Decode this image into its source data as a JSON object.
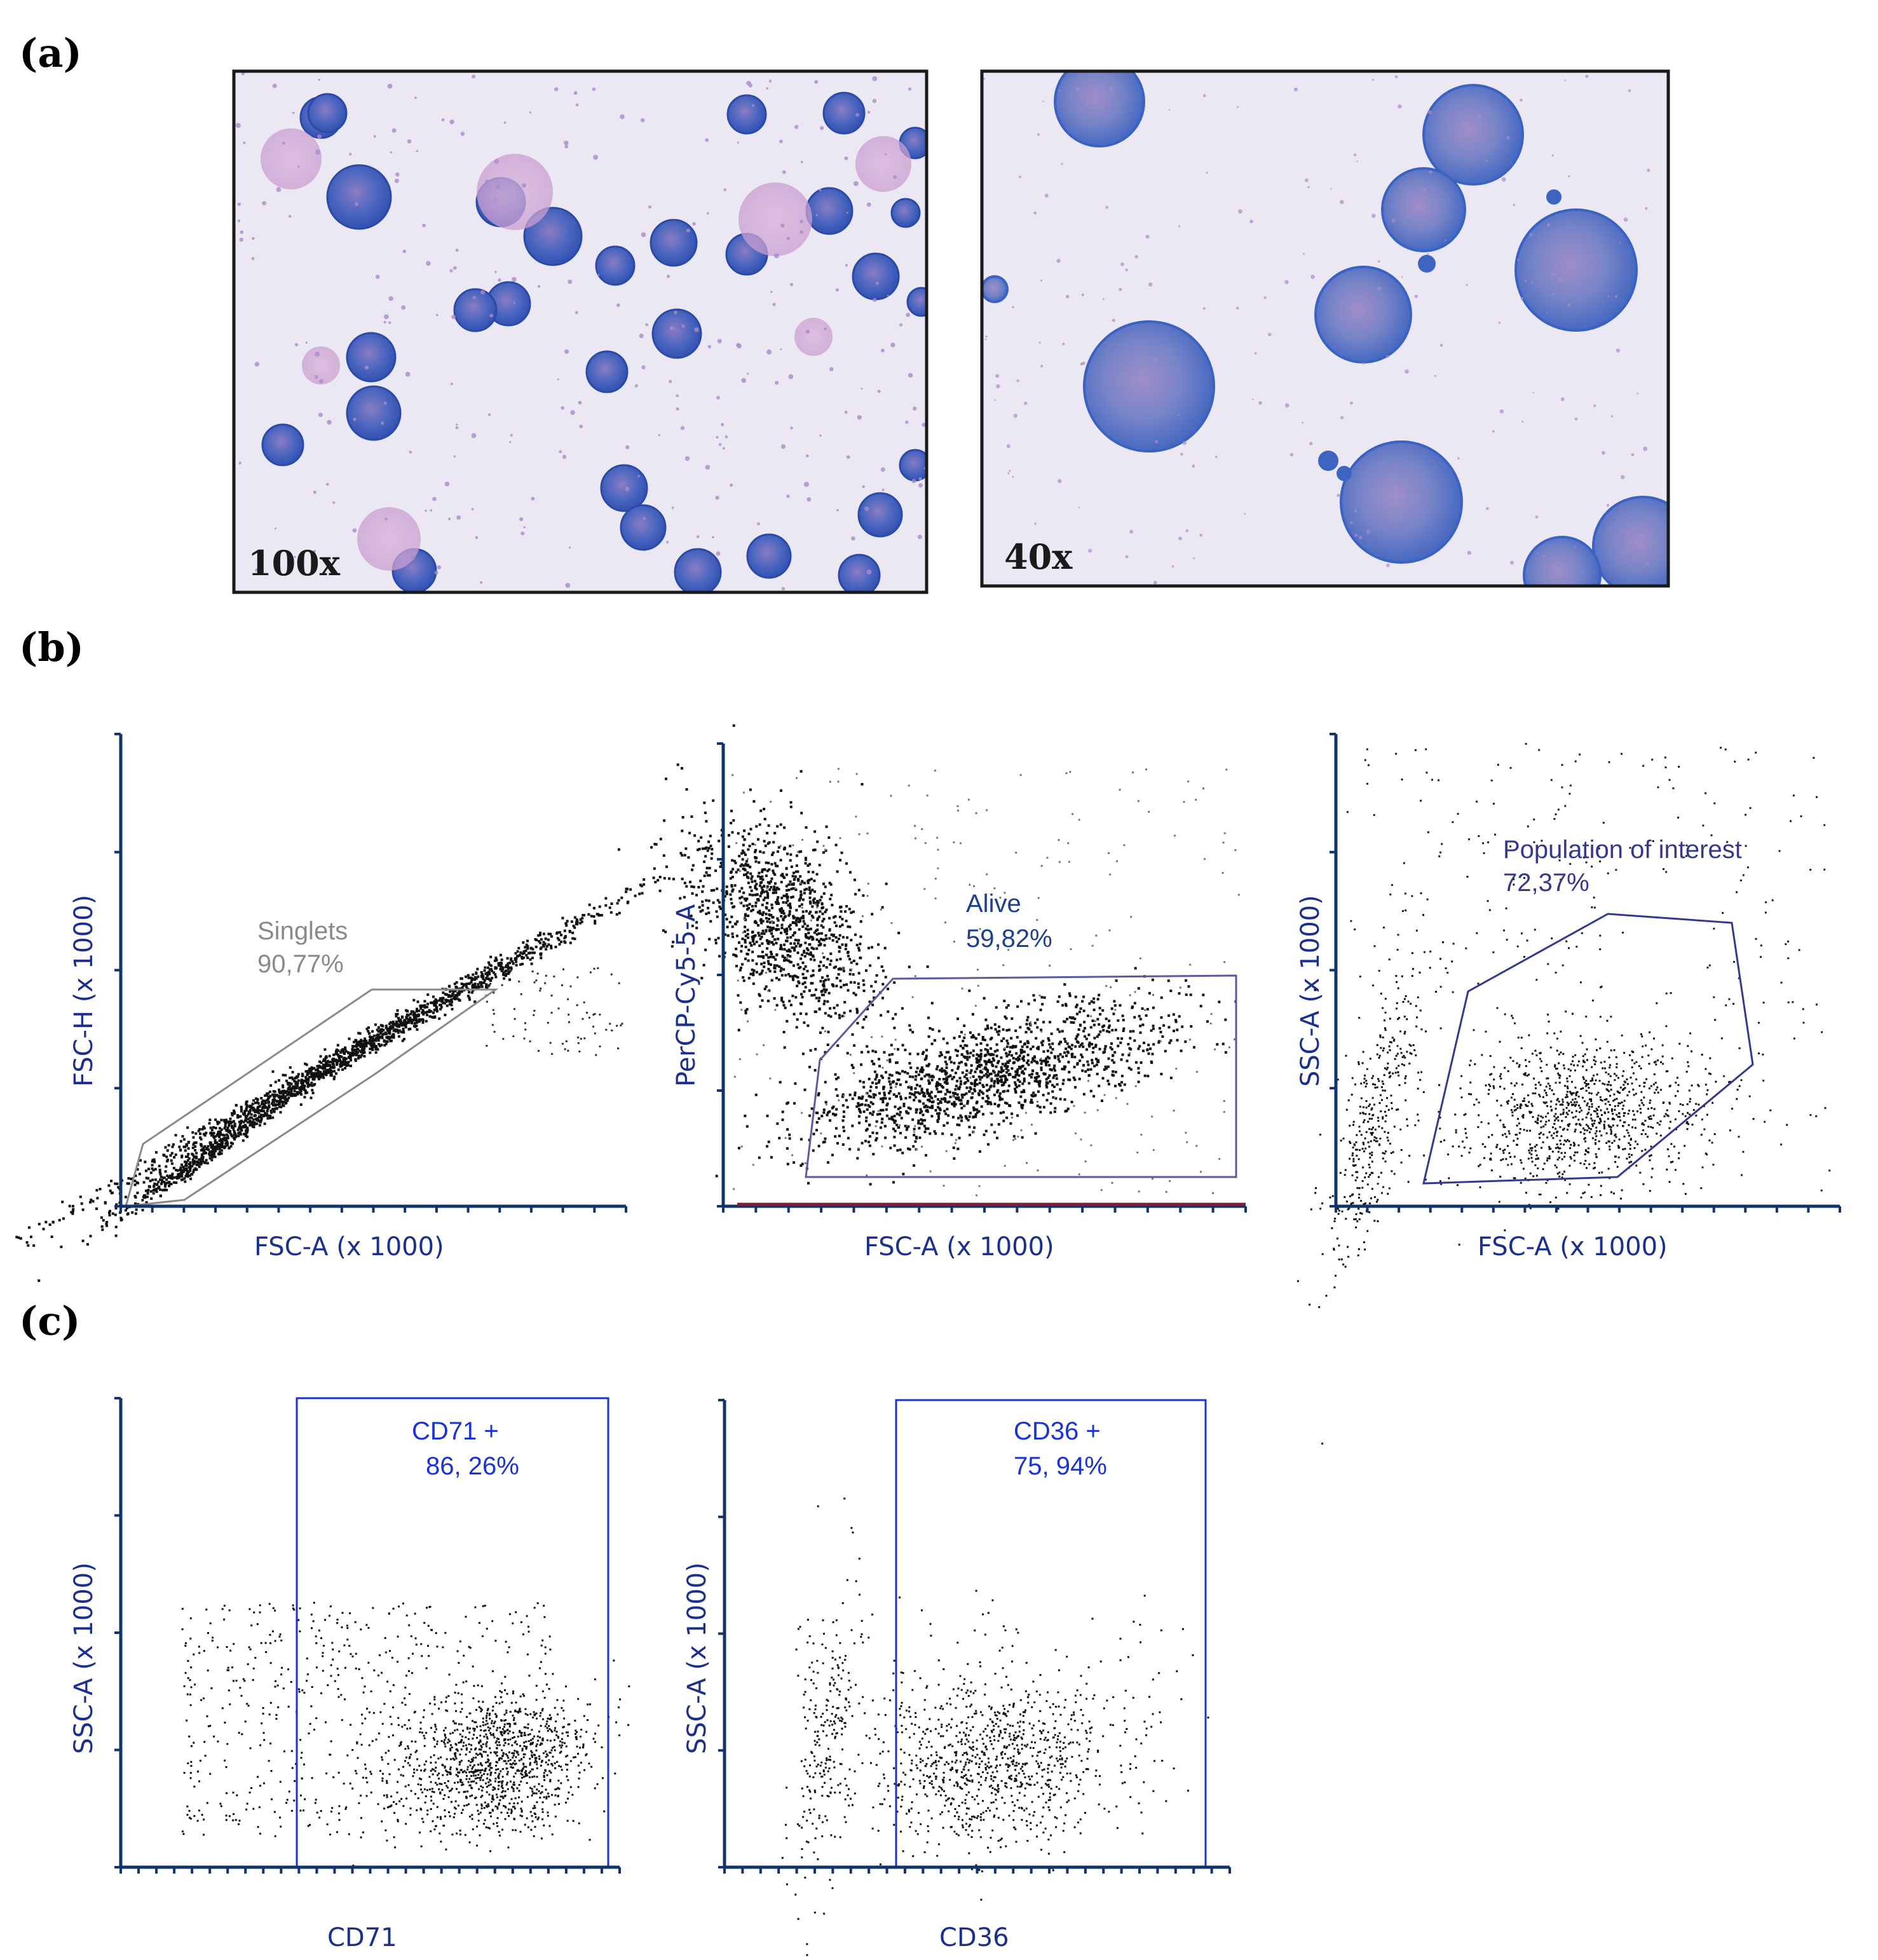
{
  "panels": {
    "a": "(a)",
    "b": "(b)",
    "c": "(c)"
  },
  "micrographs": [
    {
      "magnification": "100x"
    },
    {
      "magnification": "40x"
    }
  ],
  "plots": {
    "singlets": {
      "xlabel": "FSC-A (x 1000)",
      "ylabel": "FSC-H (x 1000)",
      "gate_name": "Singlets",
      "gate_pct": "90,77%",
      "gate_color": "#8a8a8a"
    },
    "alive": {
      "xlabel": "FSC-A (x 1000)",
      "ylabel": "PerCP-Cy5-5-A",
      "gate_name": "Alive",
      "gate_pct": "59,82%",
      "gate_color": "#1f3f8f"
    },
    "population": {
      "xlabel": "FSC-A (x 1000)",
      "ylabel": "SSC-A (x 1000)",
      "gate_name": "Population of interest",
      "gate_pct": "72,37%",
      "gate_color": "#34388f"
    },
    "cd71": {
      "xlabel": "CD71",
      "ylabel": "SSC-A (x 1000)",
      "gate_name": "CD71 +",
      "gate_pct": "86, 26%",
      "gate_color": "#1a33d6"
    },
    "cd36": {
      "xlabel": "CD36",
      "ylabel": "SSC-A (x 1000)",
      "gate_name": "CD36 +",
      "gate_pct": "75, 94%",
      "gate_color": "#1a33d6"
    }
  },
  "colors": {
    "axis": "#12336b",
    "label_blue": "#1c2f8c",
    "cell_blue": "#3b5fb8",
    "background_stain": "#eae6f2"
  }
}
